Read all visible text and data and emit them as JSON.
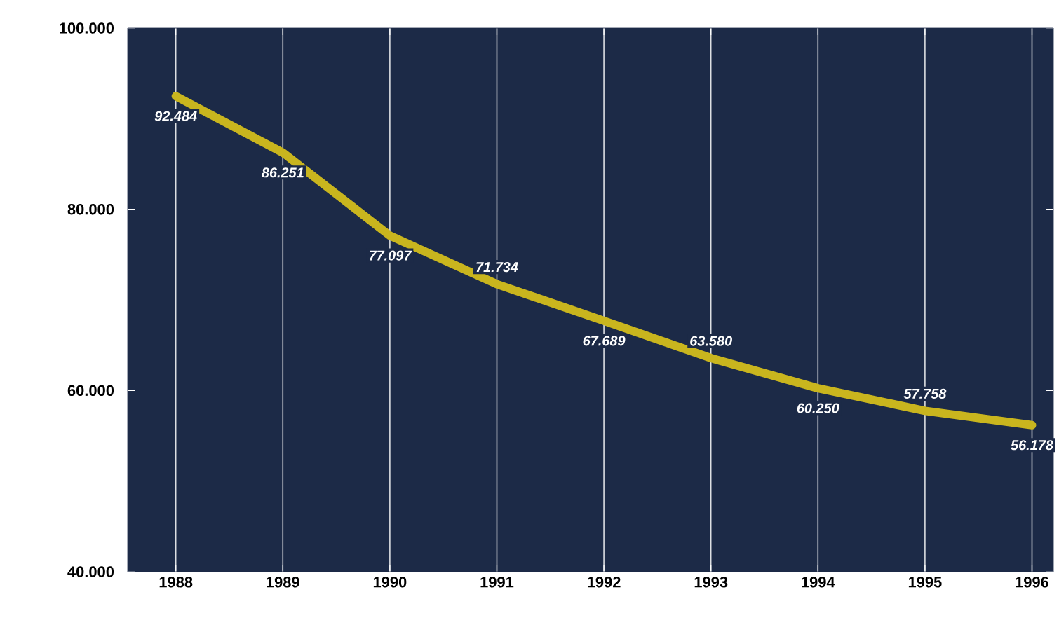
{
  "chart_data": {
    "type": "line",
    "categories": [
      "1988",
      "1989",
      "1990",
      "1991",
      "1992",
      "1993",
      "1994",
      "1995",
      "1996"
    ],
    "series": [
      {
        "color": "#c9b51e",
        "values": [
          92484,
          86251,
          77097,
          71734,
          67689,
          63580,
          60250,
          57758,
          56178
        ],
        "value_labels": [
          "92.484",
          "86.251",
          "77.097",
          "71.734",
          "67.689",
          "63.580",
          "60.250",
          "57.758",
          "56.178"
        ]
      }
    ],
    "ylim": [
      40000,
      100000
    ],
    "yticks": [
      {
        "value": 40000,
        "label": "40.000"
      },
      {
        "value": 60000,
        "label": "60.000"
      },
      {
        "value": 80000,
        "label": "80.000"
      },
      {
        "value": 100000,
        "label": "100.000"
      }
    ],
    "grid": "x",
    "marker": "none",
    "line_style": "solid"
  }
}
